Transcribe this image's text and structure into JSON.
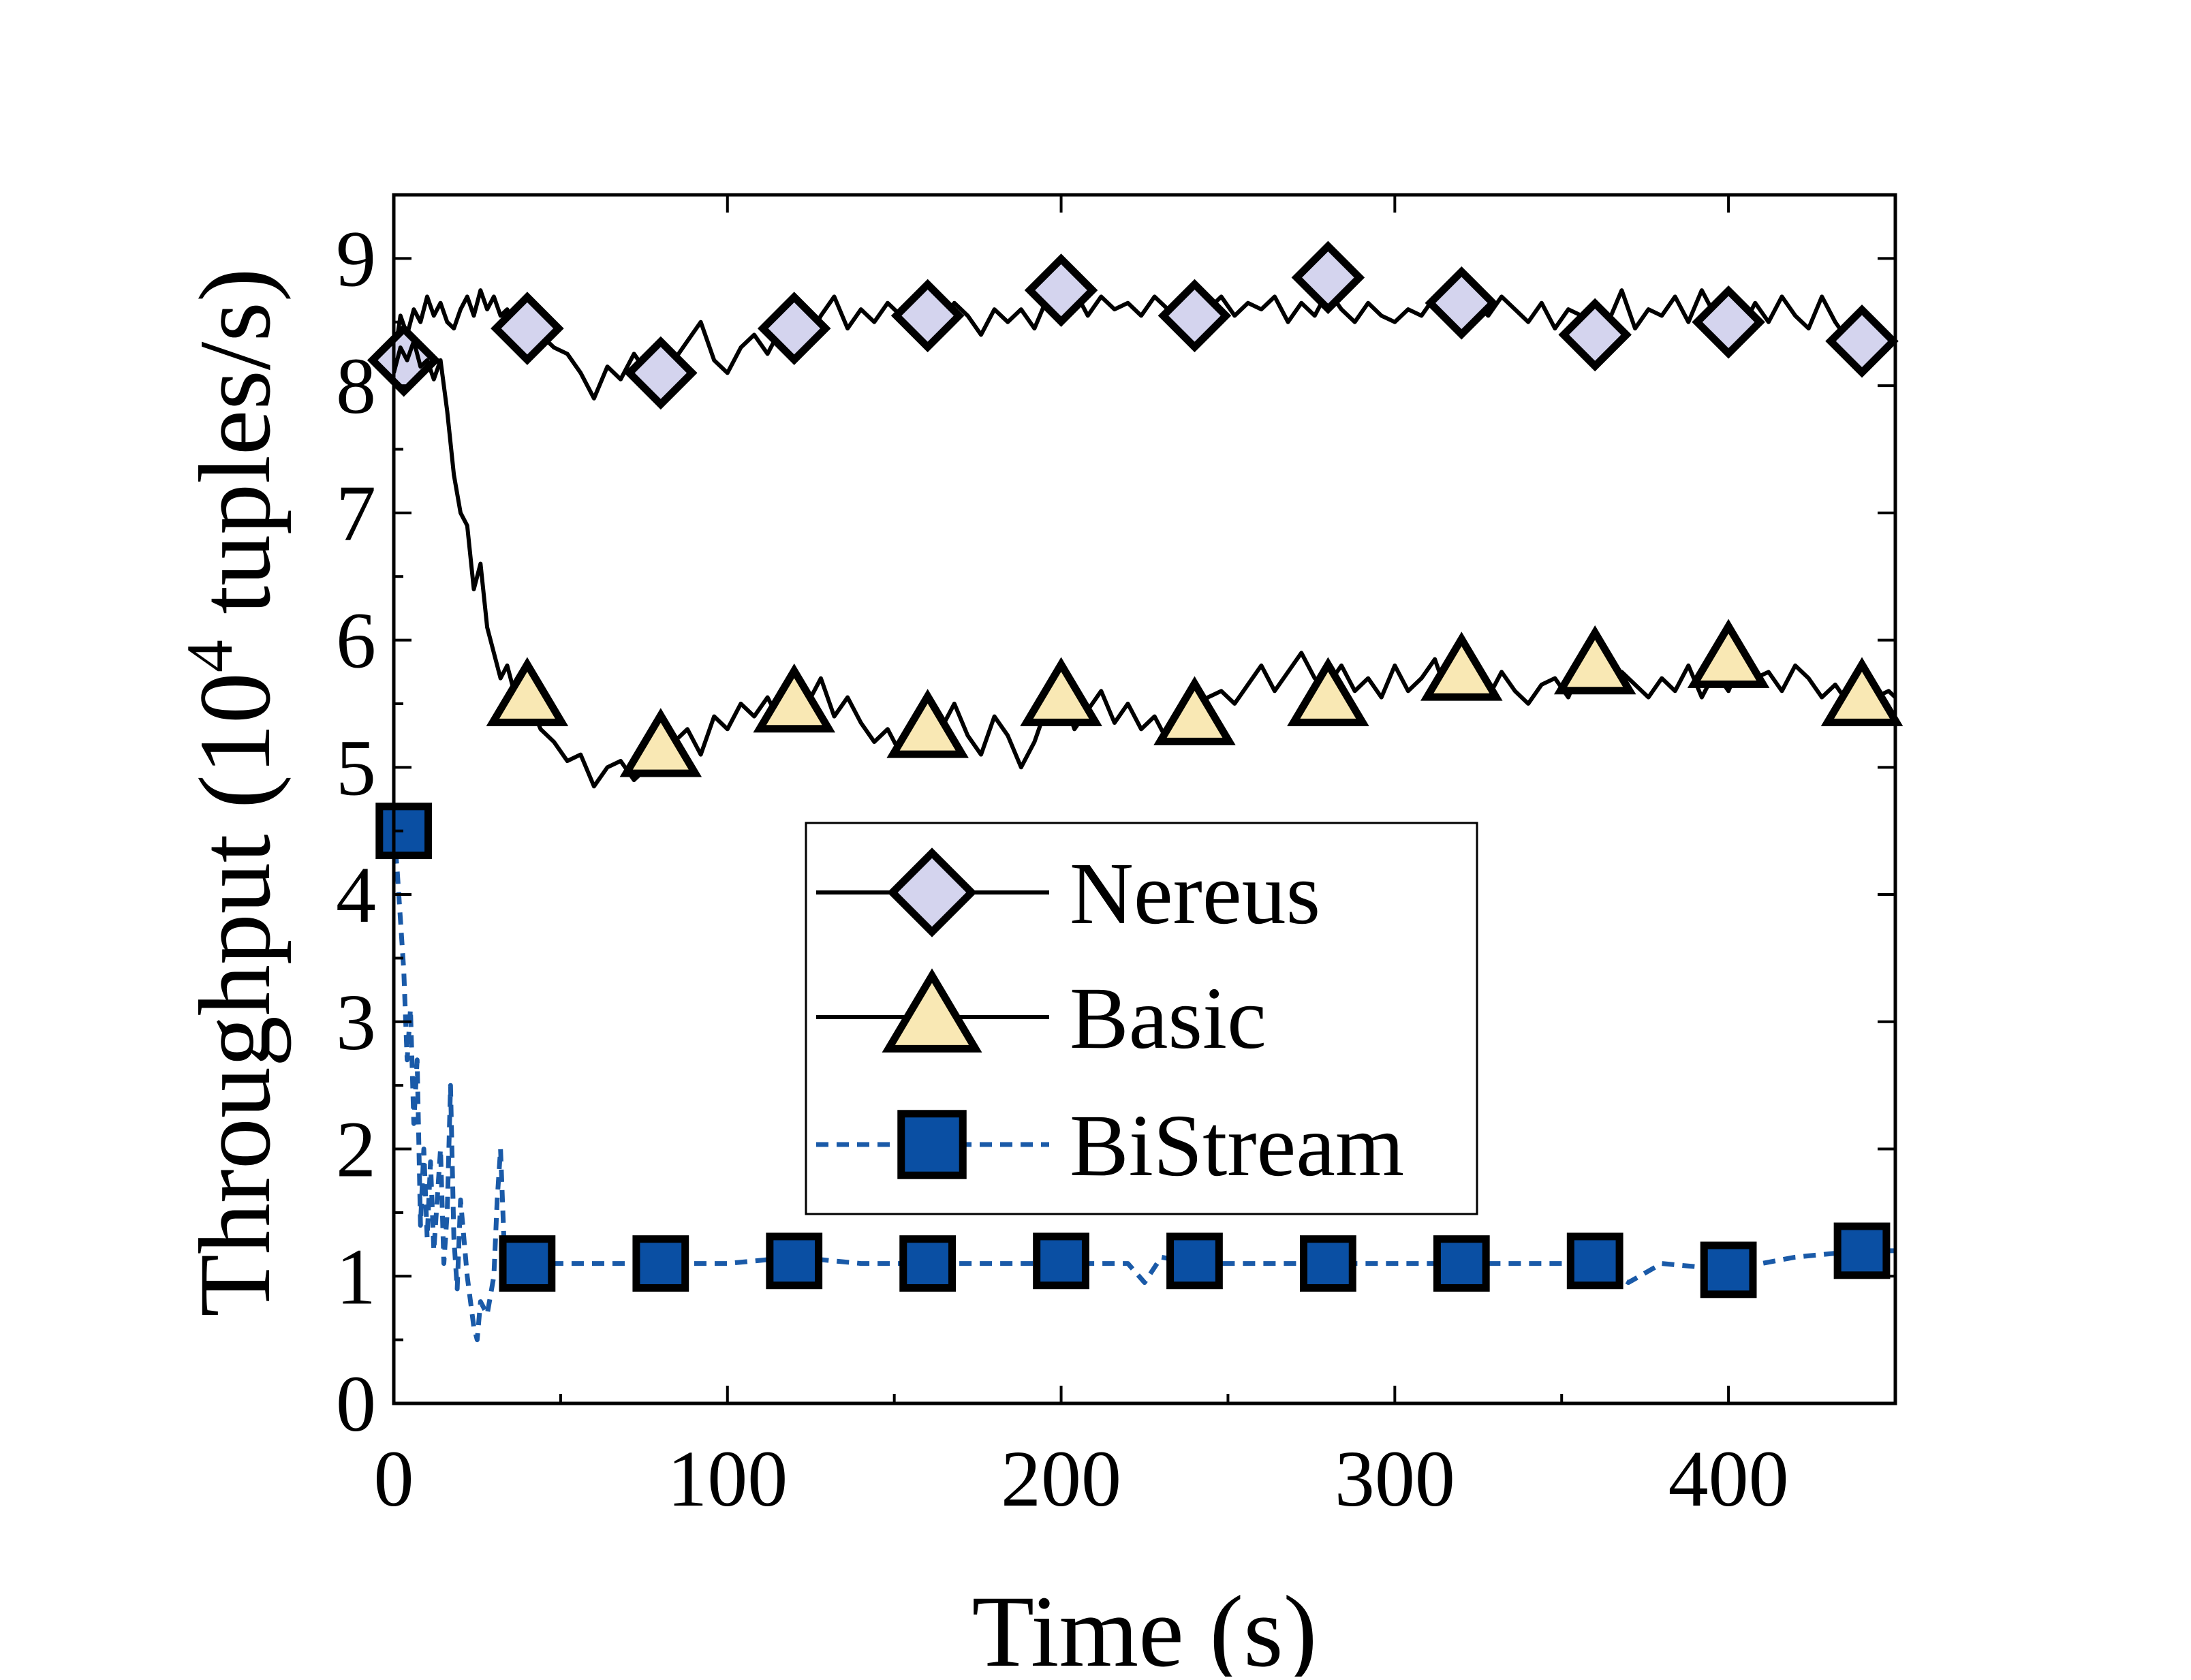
{
  "chart_data": {
    "type": "line",
    "title": "",
    "xlabel": "Time (s)",
    "ylabel_main": "Throughput (10",
    "ylabel_sup": "4",
    "ylabel_tail": " tuples/s)",
    "xlim": [
      0,
      450
    ],
    "ylim": [
      0,
      9.5
    ],
    "xticks": [
      0,
      100,
      200,
      300,
      400
    ],
    "yticks": [
      0,
      1,
      2,
      3,
      4,
      5,
      6,
      7,
      8,
      9
    ],
    "grid": false,
    "legend_position": "center-right",
    "series": [
      {
        "name": "Nereus",
        "line_style": "solid",
        "line_color": "#000000",
        "marker": "diamond",
        "marker_fill": "#d4d4ee",
        "x": [
          0,
          2,
          4,
          6,
          8,
          10,
          12,
          14,
          16,
          18,
          20,
          22,
          24,
          26,
          28,
          30,
          32,
          34,
          36,
          38,
          40,
          44,
          48,
          52,
          56,
          60,
          64,
          68,
          72,
          76,
          80,
          84,
          88,
          92,
          96,
          100,
          104,
          108,
          112,
          116,
          120,
          124,
          128,
          132,
          136,
          140,
          144,
          148,
          152,
          156,
          160,
          164,
          168,
          172,
          176,
          180,
          184,
          188,
          192,
          196,
          200,
          204,
          208,
          212,
          216,
          220,
          224,
          228,
          232,
          236,
          240,
          244,
          248,
          252,
          256,
          260,
          264,
          268,
          272,
          276,
          280,
          284,
          288,
          292,
          296,
          300,
          304,
          308,
          312,
          316,
          320,
          324,
          328,
          332,
          336,
          340,
          344,
          348,
          352,
          356,
          360,
          364,
          368,
          372,
          376,
          380,
          384,
          388,
          392,
          396,
          400,
          404,
          408,
          412,
          416,
          420,
          424,
          428,
          432,
          436,
          440,
          444,
          448,
          450
        ],
        "y": [
          8.2,
          8.55,
          8.4,
          8.6,
          8.5,
          8.7,
          8.55,
          8.65,
          8.5,
          8.45,
          8.6,
          8.7,
          8.55,
          8.75,
          8.6,
          8.7,
          8.55,
          8.6,
          8.45,
          8.6,
          8.5,
          8.4,
          8.3,
          8.25,
          8.1,
          7.9,
          8.15,
          8.05,
          8.25,
          8.1,
          8.0,
          8.2,
          8.35,
          8.5,
          8.2,
          8.1,
          8.3,
          8.4,
          8.25,
          8.45,
          8.5,
          8.35,
          8.55,
          8.7,
          8.45,
          8.6,
          8.5,
          8.65,
          8.55,
          8.7,
          8.6,
          8.5,
          8.65,
          8.55,
          8.4,
          8.6,
          8.5,
          8.6,
          8.45,
          8.7,
          8.65,
          8.75,
          8.55,
          8.7,
          8.6,
          8.65,
          8.55,
          8.7,
          8.6,
          8.5,
          8.65,
          8.6,
          8.7,
          8.55,
          8.65,
          8.6,
          8.7,
          8.5,
          8.65,
          8.55,
          8.75,
          8.6,
          8.5,
          8.65,
          8.55,
          8.5,
          8.6,
          8.55,
          8.7,
          8.5,
          8.6,
          8.65,
          8.55,
          8.7,
          8.6,
          8.5,
          8.65,
          8.45,
          8.6,
          8.55,
          8.4,
          8.5,
          8.75,
          8.45,
          8.6,
          8.55,
          8.7,
          8.5,
          8.75,
          8.55,
          8.6,
          8.45,
          8.65,
          8.5,
          8.7,
          8.55,
          8.45,
          8.7,
          8.5,
          8.35,
          8.45,
          8.3,
          8.4,
          8.35
        ],
        "marker_x": [
          3,
          40,
          80,
          120,
          160,
          200,
          240,
          280,
          320,
          360,
          400,
          440
        ],
        "marker_y": [
          8.2,
          8.45,
          8.1,
          8.45,
          8.55,
          8.75,
          8.55,
          8.85,
          8.65,
          8.4,
          8.5,
          8.35
        ]
      },
      {
        "name": "Basic",
        "line_style": "solid",
        "line_color": "#000000",
        "marker": "triangle",
        "marker_fill": "#f9e8b4",
        "x": [
          0,
          2,
          4,
          6,
          8,
          10,
          12,
          14,
          16,
          18,
          20,
          22,
          24,
          26,
          28,
          30,
          32,
          34,
          36,
          38,
          40,
          44,
          48,
          52,
          56,
          60,
          64,
          68,
          72,
          76,
          80,
          84,
          88,
          92,
          96,
          100,
          104,
          108,
          112,
          116,
          120,
          124,
          128,
          132,
          136,
          140,
          144,
          148,
          152,
          156,
          160,
          164,
          168,
          172,
          176,
          180,
          184,
          188,
          192,
          196,
          200,
          204,
          208,
          212,
          216,
          220,
          224,
          228,
          232,
          236,
          240,
          244,
          248,
          252,
          256,
          260,
          264,
          268,
          272,
          276,
          280,
          284,
          288,
          292,
          296,
          300,
          304,
          308,
          312,
          316,
          320,
          324,
          328,
          332,
          336,
          340,
          344,
          348,
          352,
          356,
          360,
          364,
          368,
          372,
          376,
          380,
          384,
          388,
          392,
          396,
          400,
          404,
          408,
          412,
          416,
          420,
          424,
          428,
          432,
          436,
          440,
          444,
          448,
          450
        ],
        "y": [
          8.1,
          8.3,
          8.2,
          8.35,
          8.15,
          8.2,
          8.05,
          8.2,
          7.8,
          7.3,
          7.0,
          6.9,
          6.4,
          6.6,
          6.1,
          5.9,
          5.7,
          5.8,
          5.6,
          5.5,
          5.55,
          5.3,
          5.2,
          5.05,
          5.1,
          4.85,
          5.0,
          5.05,
          4.9,
          5.0,
          5.1,
          5.2,
          5.3,
          5.1,
          5.4,
          5.3,
          5.5,
          5.4,
          5.55,
          5.35,
          5.6,
          5.5,
          5.7,
          5.4,
          5.55,
          5.35,
          5.2,
          5.3,
          5.1,
          5.15,
          5.2,
          5.3,
          5.5,
          5.25,
          5.1,
          5.4,
          5.25,
          5.0,
          5.2,
          5.5,
          5.6,
          5.3,
          5.45,
          5.6,
          5.35,
          5.5,
          5.3,
          5.4,
          5.2,
          5.35,
          5.45,
          5.55,
          5.6,
          5.5,
          5.65,
          5.8,
          5.6,
          5.75,
          5.9,
          5.7,
          5.65,
          5.8,
          5.6,
          5.7,
          5.55,
          5.8,
          5.6,
          5.7,
          5.85,
          5.55,
          5.7,
          5.6,
          5.55,
          5.75,
          5.6,
          5.5,
          5.65,
          5.7,
          5.55,
          5.8,
          5.7,
          5.6,
          5.75,
          5.65,
          5.55,
          5.7,
          5.6,
          5.8,
          5.55,
          5.75,
          5.6,
          5.85,
          5.7,
          5.75,
          5.6,
          5.8,
          5.7,
          5.55,
          5.65,
          5.5,
          5.6,
          5.55,
          5.6,
          5.55
        ],
        "marker_x": [
          40,
          80,
          120,
          160,
          200,
          240,
          280,
          320,
          360,
          400,
          440
        ],
        "marker_y": [
          5.55,
          5.15,
          5.5,
          5.3,
          5.55,
          5.4,
          5.55,
          5.75,
          5.8,
          5.85,
          5.55
        ]
      },
      {
        "name": "BiStream",
        "line_style": "dashed",
        "line_color": "#1a5aa8",
        "marker": "square",
        "marker_fill": "#0a4fa3",
        "x": [
          0,
          1,
          2,
          3,
          4,
          5,
          6,
          7,
          8,
          9,
          10,
          11,
          12,
          13,
          14,
          15,
          16,
          17,
          18,
          19,
          20,
          22,
          24,
          25,
          26,
          28,
          30,
          31,
          32,
          33,
          34,
          36,
          38,
          40,
          50,
          60,
          70,
          80,
          100,
          120,
          140,
          160,
          180,
          200,
          220,
          225,
          230,
          240,
          260,
          280,
          300,
          320,
          340,
          360,
          370,
          380,
          400,
          420,
          440,
          450
        ],
        "y": [
          4.5,
          4.2,
          3.8,
          3.4,
          2.7,
          3.1,
          2.2,
          2.7,
          1.4,
          2.0,
          1.3,
          1.9,
          1.2,
          1.6,
          2.0,
          1.1,
          1.5,
          2.5,
          1.3,
          0.9,
          1.6,
          1.0,
          0.6,
          0.5,
          0.8,
          0.7,
          1.0,
          1.6,
          2.0,
          1.3,
          1.1,
          1.1,
          1.05,
          1.1,
          1.1,
          1.1,
          1.1,
          1.1,
          1.1,
          1.15,
          1.1,
          1.1,
          1.1,
          1.1,
          1.1,
          0.95,
          1.15,
          1.1,
          1.1,
          1.1,
          1.1,
          1.1,
          1.1,
          1.1,
          0.95,
          1.1,
          1.05,
          1.15,
          1.2,
          1.2
        ],
        "marker_x": [
          3,
          40,
          80,
          120,
          160,
          200,
          240,
          280,
          320,
          360,
          400,
          440
        ],
        "marker_y": [
          4.5,
          1.1,
          1.1,
          1.12,
          1.1,
          1.12,
          1.12,
          1.1,
          1.1,
          1.12,
          1.05,
          1.2
        ]
      }
    ]
  }
}
